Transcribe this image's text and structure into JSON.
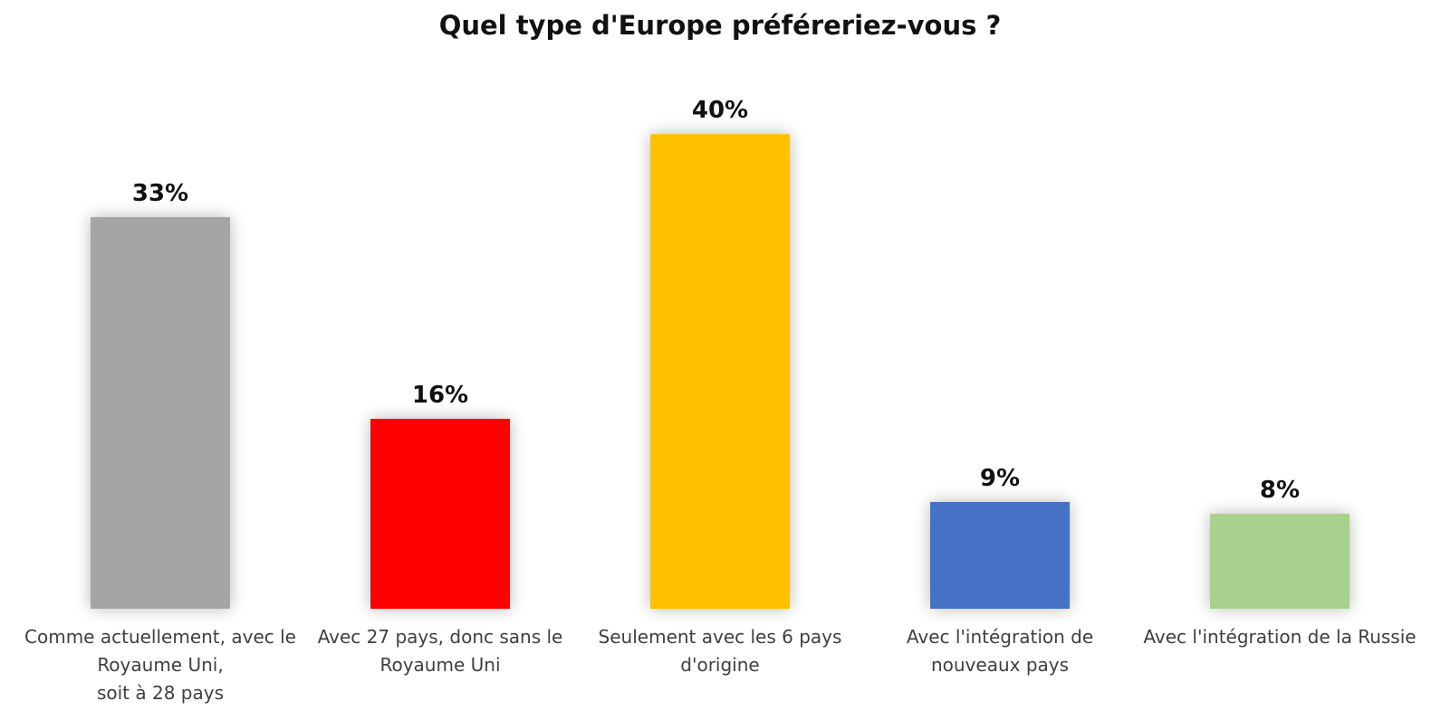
{
  "chart_data": {
    "type": "bar",
    "title": "Quel type d'Europe préféreriez-vous ?",
    "xlabel": "",
    "ylabel": "",
    "ylim": [
      0,
      48
    ],
    "grid": false,
    "legend": "none",
    "categories": [
      [
        "Comme actuellement, avec le",
        "Royaume Uni,",
        "soit à 28 pays"
      ],
      [
        "Avec 27 pays, donc sans le",
        "Royaume Uni"
      ],
      [
        "Seulement avec les 6 pays",
        "d'origine"
      ],
      [
        "Avec l'intégration de",
        "nouveaux pays"
      ],
      [
        "Avec l'intégration de la Russie"
      ]
    ],
    "values": [
      33,
      16,
      40,
      9,
      8
    ],
    "data_labels": [
      "33%",
      "16%",
      "40%",
      "9%",
      "8%"
    ],
    "colors": [
      "#a5a5a5",
      "#ff0000",
      "#ffc000",
      "#4472c4",
      "#a9d18e"
    ]
  }
}
